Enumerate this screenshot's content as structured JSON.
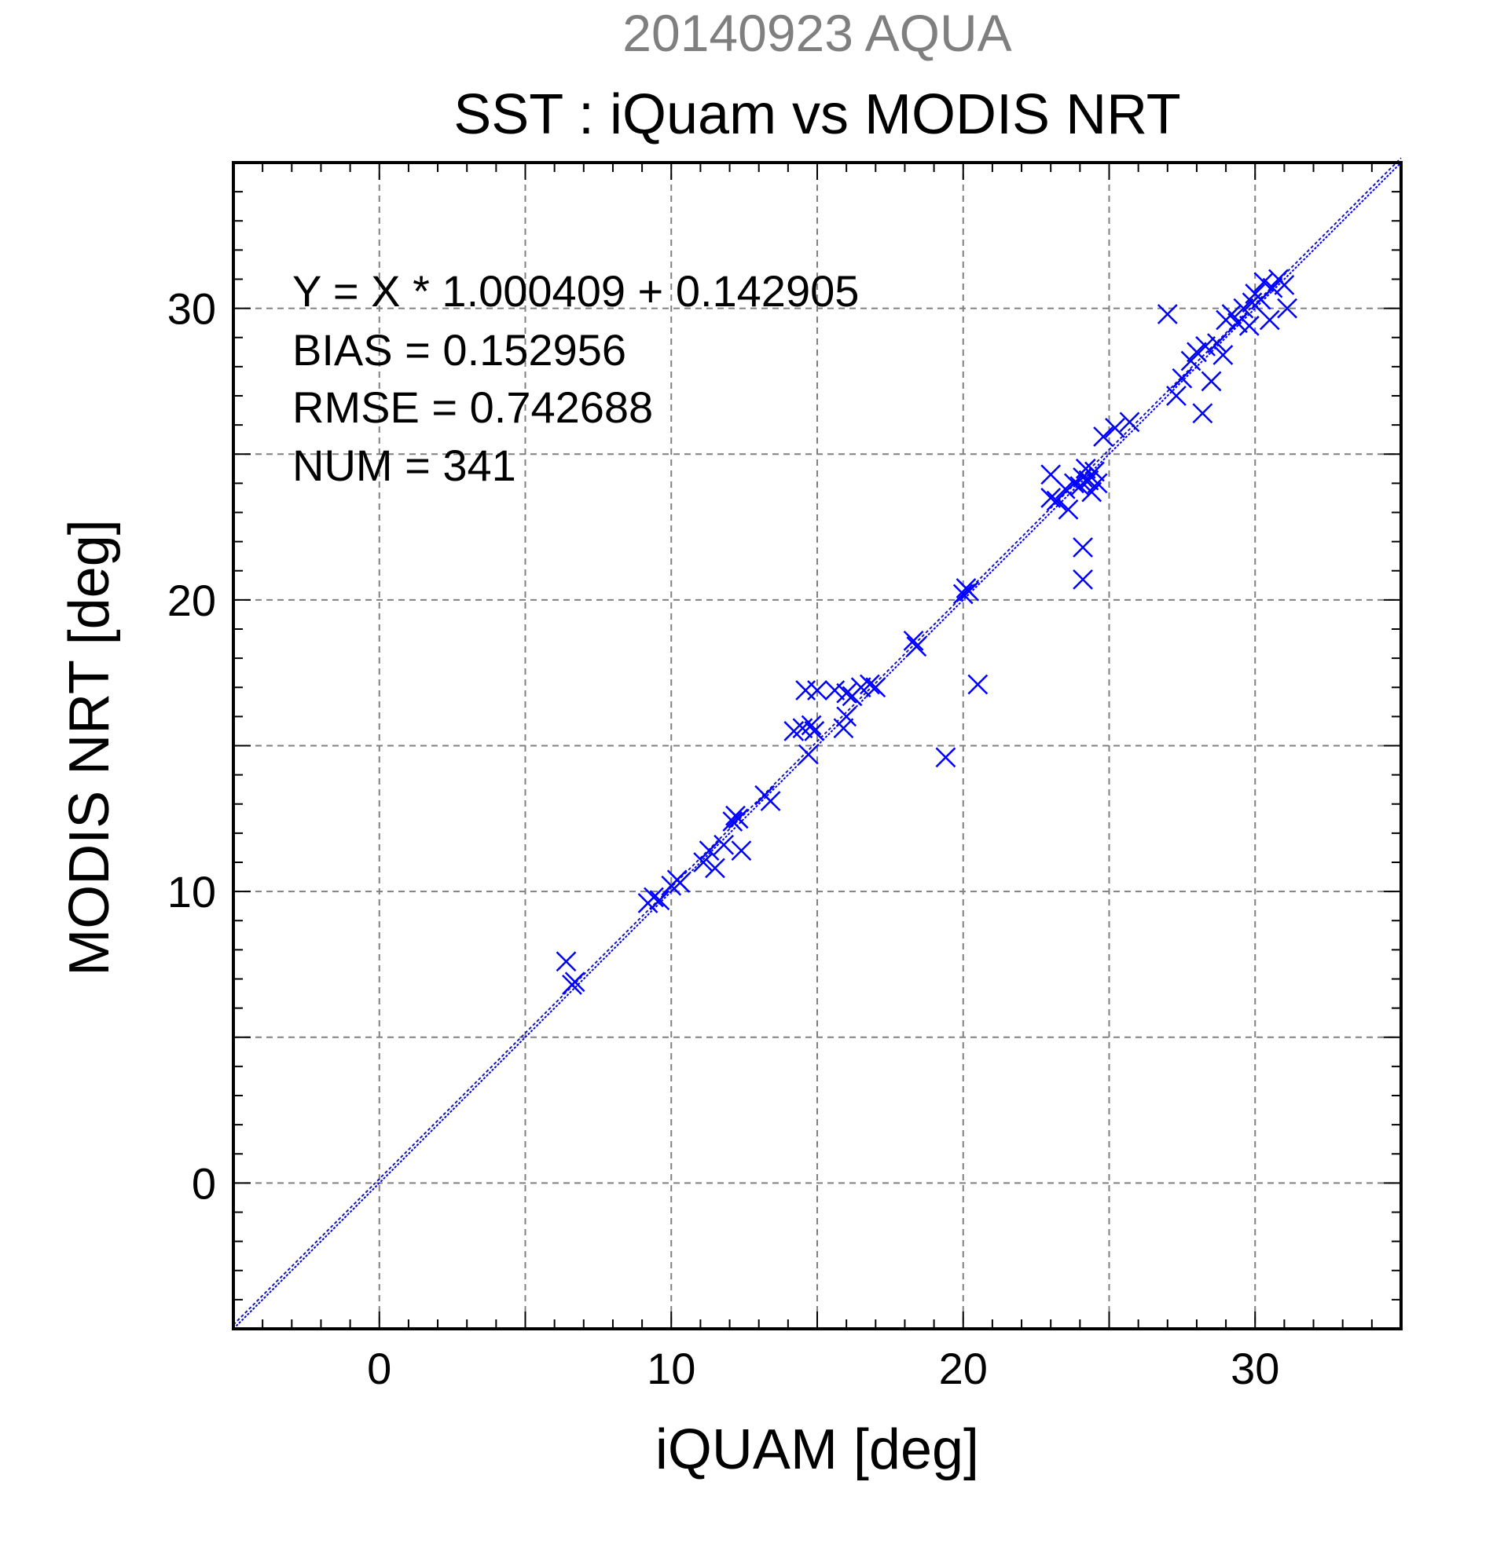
{
  "chart_data": {
    "type": "scatter",
    "title": "SST : iQuam vs MODIS NRT",
    "subtitle": "20140923 AQUA",
    "xlabel": "iQUAM [deg]",
    "ylabel": "MODIS NRT [deg]",
    "xlim": [
      -5,
      35
    ],
    "ylim": [
      -5,
      35
    ],
    "xticks": [
      0,
      10,
      20,
      30
    ],
    "yticks": [
      0,
      10,
      20,
      30
    ],
    "grid": true,
    "stats": {
      "equation": "Y = X * 1.000409 + 0.142905",
      "bias": "BIAS = 0.152956",
      "rmse": "RMSE = 0.742688",
      "num": "NUM = 341"
    },
    "fit_line": {
      "slope": 1.000409,
      "intercept": 0.142905
    },
    "marker_color": "#0000ff",
    "series": [
      {
        "marker": "x",
        "points": [
          [
            6.4,
            7.6
          ],
          [
            6.6,
            6.8
          ],
          [
            6.7,
            6.9
          ],
          [
            9.2,
            9.6
          ],
          [
            9.4,
            9.8
          ],
          [
            9.6,
            9.7
          ],
          [
            10.0,
            10.2
          ],
          [
            10.2,
            10.4
          ],
          [
            10.3,
            10.3
          ],
          [
            11.1,
            11.0
          ],
          [
            11.3,
            11.4
          ],
          [
            11.5,
            10.8
          ],
          [
            11.8,
            11.6
          ],
          [
            12.1,
            12.4
          ],
          [
            12.2,
            12.6
          ],
          [
            12.3,
            12.5
          ],
          [
            12.4,
            11.4
          ],
          [
            13.2,
            13.3
          ],
          [
            13.4,
            13.1
          ],
          [
            14.2,
            15.5
          ],
          [
            14.5,
            15.6
          ],
          [
            14.7,
            14.7
          ],
          [
            14.8,
            15.7
          ],
          [
            14.9,
            15.5
          ],
          [
            14.6,
            16.9
          ],
          [
            15.0,
            16.9
          ],
          [
            15.6,
            16.9
          ],
          [
            15.9,
            15.6
          ],
          [
            16.0,
            16.0
          ],
          [
            16.0,
            16.8
          ],
          [
            16.2,
            16.7
          ],
          [
            16.5,
            17.0
          ],
          [
            16.8,
            17.1
          ],
          [
            17.0,
            17.0
          ],
          [
            18.3,
            18.6
          ],
          [
            18.4,
            18.4
          ],
          [
            19.4,
            14.6
          ],
          [
            20.0,
            20.2
          ],
          [
            20.1,
            20.4
          ],
          [
            20.2,
            20.3
          ],
          [
            20.5,
            17.1
          ],
          [
            23.0,
            23.5
          ],
          [
            23.2,
            23.4
          ],
          [
            23.0,
            24.3
          ],
          [
            23.5,
            23.8
          ],
          [
            23.6,
            23.1
          ],
          [
            23.8,
            24.0
          ],
          [
            24.0,
            23.9
          ],
          [
            24.1,
            24.2
          ],
          [
            24.2,
            24.5
          ],
          [
            24.3,
            24.1
          ],
          [
            24.4,
            23.7
          ],
          [
            24.5,
            24.4
          ],
          [
            24.6,
            24.0
          ],
          [
            24.1,
            21.8
          ],
          [
            24.1,
            20.7
          ],
          [
            24.8,
            25.6
          ],
          [
            25.2,
            25.9
          ],
          [
            25.7,
            26.1
          ],
          [
            27.0,
            29.8
          ],
          [
            27.3,
            27.0
          ],
          [
            27.5,
            27.6
          ],
          [
            27.8,
            28.2
          ],
          [
            28.0,
            28.5
          ],
          [
            28.2,
            26.4
          ],
          [
            28.3,
            28.7
          ],
          [
            28.5,
            27.5
          ],
          [
            28.7,
            28.8
          ],
          [
            28.9,
            28.4
          ],
          [
            29.0,
            29.6
          ],
          [
            29.2,
            29.8
          ],
          [
            29.4,
            29.5
          ],
          [
            29.6,
            30.0
          ],
          [
            29.8,
            29.4
          ],
          [
            29.9,
            30.2
          ],
          [
            30.0,
            30.5
          ],
          [
            30.2,
            30.3
          ],
          [
            30.3,
            30.9
          ],
          [
            30.5,
            29.6
          ],
          [
            30.6,
            30.7
          ],
          [
            30.8,
            31.0
          ],
          [
            31.0,
            30.8
          ],
          [
            31.1,
            30.0
          ]
        ]
      }
    ]
  }
}
